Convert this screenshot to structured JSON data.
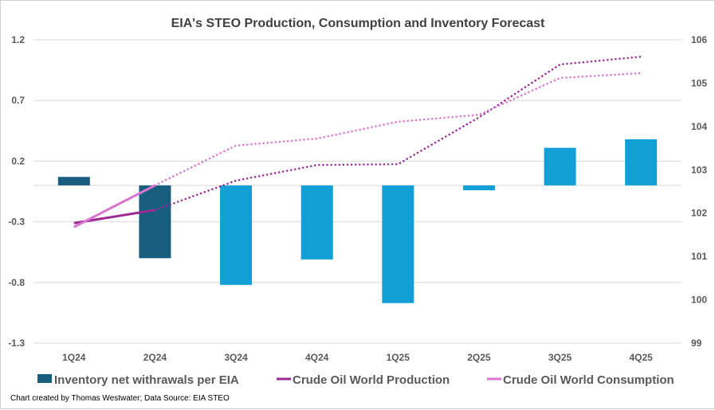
{
  "chart_data": {
    "type": "bar+line",
    "title": "EIA's STEO Production, Consumption and Inventory Forecast",
    "categories": [
      "1Q24",
      "2Q24",
      "3Q24",
      "4Q24",
      "1Q25",
      "2Q25",
      "3Q25",
      "4Q25"
    ],
    "left_axis": {
      "range": [
        -1.3,
        1.2
      ],
      "ticks": [
        "1.2",
        "0.7",
        "0.2",
        "-0.3",
        "-0.8",
        "-1.3"
      ],
      "grid": true
    },
    "right_axis": {
      "range": [
        99,
        106
      ],
      "ticks": [
        "106",
        "105",
        "104",
        "103",
        "102",
        "101",
        "100",
        "99"
      ]
    },
    "series": [
      {
        "name": "Inventory net withrawals per EIA",
        "kind": "bar",
        "axis": "left",
        "values": [
          0.07,
          -0.6,
          -0.82,
          -0.61,
          -0.97,
          -0.04,
          0.31,
          0.38
        ],
        "colors": [
          "#175e7f",
          "#175e7f",
          "#129fd6",
          "#129fd6",
          "#129fd6",
          "#129fd6",
          "#129fd6",
          "#129fd6"
        ]
      },
      {
        "name": "Crude Oil World Production",
        "kind": "line",
        "axis": "right",
        "color": "#9b2a93",
        "values": [
          101.77,
          102.07,
          102.75,
          103.11,
          103.13,
          104.21,
          105.43,
          105.61
        ],
        "solid_until": "2Q24",
        "forecast_style": "dotted"
      },
      {
        "name": "Crude Oil World Consumption",
        "kind": "line",
        "axis": "right",
        "color": "#d875d0",
        "values": [
          101.68,
          102.64,
          103.56,
          103.72,
          104.11,
          104.27,
          105.12,
          105.23
        ],
        "solid_until": "2Q24",
        "forecast_style": "dotted"
      }
    ],
    "legend": "bottom",
    "note": "Chart created by Thomas Westwater; Data Source: EIA STEO"
  }
}
